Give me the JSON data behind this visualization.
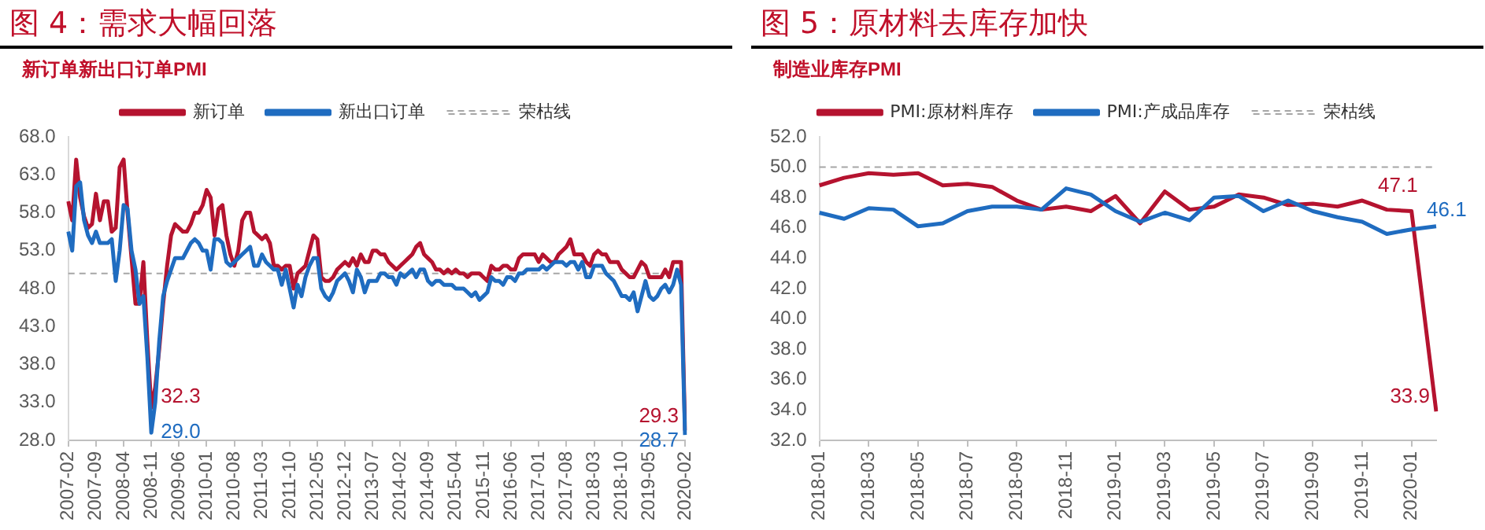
{
  "chart_data": [
    {
      "type": "line",
      "title": "图 4：需求大幅回落",
      "subtitle": "新订单新出口订单PMI",
      "categories": [
        "2007-02",
        null,
        null,
        null,
        null,
        null,
        null,
        "2007-09",
        null,
        null,
        null,
        null,
        null,
        null,
        "2008-04",
        null,
        null,
        null,
        null,
        null,
        null,
        "2008-11",
        null,
        null,
        null,
        null,
        null,
        null,
        "2009-06",
        null,
        null,
        null,
        null,
        null,
        null,
        "2010-01",
        null,
        null,
        null,
        null,
        null,
        null,
        "2010-08",
        null,
        null,
        null,
        null,
        null,
        null,
        "2011-03",
        null,
        null,
        null,
        null,
        null,
        null,
        "2011-10",
        null,
        null,
        null,
        null,
        null,
        null,
        "2012-05",
        null,
        null,
        null,
        null,
        null,
        null,
        "2012-12",
        null,
        null,
        null,
        null,
        null,
        null,
        "2013-07",
        null,
        null,
        null,
        null,
        null,
        null,
        "2014-02",
        null,
        null,
        null,
        null,
        null,
        null,
        "2014-09",
        null,
        null,
        null,
        null,
        null,
        null,
        "2015-04",
        null,
        null,
        null,
        null,
        null,
        null,
        "2015-11",
        null,
        null,
        null,
        null,
        null,
        null,
        "2016-06",
        null,
        null,
        null,
        null,
        null,
        null,
        "2017-01",
        null,
        null,
        null,
        null,
        null,
        null,
        "2017-08",
        null,
        null,
        null,
        null,
        null,
        null,
        "2018-03",
        null,
        null,
        null,
        null,
        null,
        null,
        "2018-10",
        null,
        null,
        null,
        null,
        null,
        null,
        "2019-05",
        null,
        null,
        null,
        null,
        null,
        null,
        null,
        null,
        "2020-02"
      ],
      "series": [
        {
          "name": "新订单",
          "color": "#b5132f",
          "values": [
            59.5,
            57,
            65,
            60,
            57.5,
            56,
            56.5,
            60.5,
            57,
            59.5,
            59.5,
            55.5,
            56,
            64,
            65,
            58,
            52,
            46,
            46,
            51.5,
            41,
            32.3,
            35,
            40,
            46,
            51,
            55,
            56.5,
            56,
            55.5,
            55.5,
            56.5,
            58,
            58,
            59,
            61,
            60,
            55,
            58.5,
            59,
            55,
            52.5,
            51,
            53,
            57,
            58,
            58,
            55.5,
            55,
            54.5,
            55,
            54,
            51,
            51,
            50.5,
            51,
            51,
            48,
            50,
            50.5,
            51,
            53,
            55,
            54.5,
            49.5,
            49,
            49,
            49.5,
            50.5,
            51,
            51.5,
            51,
            52,
            51,
            52.5,
            51.5,
            51.5,
            53,
            53,
            52.5,
            52.5,
            51.5,
            51,
            50.5,
            51,
            51.5,
            52,
            52.5,
            53.5,
            54,
            52.5,
            52,
            51.5,
            50.5,
            50.5,
            50,
            50.5,
            50,
            50.5,
            50,
            50,
            49.5,
            50,
            50,
            50,
            49.5,
            49,
            51,
            50.5,
            50.5,
            51,
            51,
            50.5,
            50.5,
            52,
            52.5,
            52.5,
            52.5,
            52.5,
            51.5,
            52.5,
            52,
            51.5,
            51.5,
            52.5,
            53,
            53.5,
            54.5,
            52.5,
            52.5,
            52.5,
            51.5,
            51,
            52.5,
            53,
            52.5,
            52.5,
            51.5,
            51.5,
            51.5,
            50.5,
            50,
            49.5,
            49.5,
            50.5,
            51.5,
            51,
            49.5,
            49.5,
            49.5,
            49.5,
            50.5,
            49.5,
            51.5,
            51.5,
            51.5,
            29.3
          ]
        },
        {
          "name": "新出口订单",
          "color": "#1f6cc0",
          "values": [
            55.5,
            53,
            61.5,
            62,
            57,
            55,
            54,
            55.5,
            54,
            54,
            54,
            54.5,
            49,
            53,
            59,
            58.5,
            53,
            50.5,
            46,
            47,
            39,
            29,
            33,
            41,
            47,
            49,
            50.5,
            52,
            52,
            52,
            53,
            54,
            54.5,
            54,
            53,
            53,
            50.5,
            54.5,
            54.5,
            54,
            51.5,
            51,
            51.5,
            52,
            52.5,
            53,
            53.5,
            51,
            51,
            52.5,
            51.5,
            51,
            50.5,
            50.5,
            48.5,
            50.5,
            48,
            45.5,
            48.5,
            47,
            49.5,
            51,
            52,
            52,
            48,
            47,
            46.5,
            47.5,
            49,
            49.5,
            50,
            49,
            47.5,
            50.5,
            49.5,
            47.5,
            49,
            49,
            49,
            50,
            50,
            49.5,
            49.5,
            48.5,
            50,
            49.5,
            50,
            50.5,
            49.5,
            50.5,
            50.5,
            49,
            48.5,
            49,
            49,
            48.5,
            48.5,
            48.5,
            48,
            48,
            48,
            47.5,
            47,
            47.5,
            46.5,
            47,
            47.5,
            49.5,
            49,
            49,
            48.5,
            49.5,
            49.5,
            49,
            50,
            50,
            50.5,
            50.5,
            50.5,
            50.5,
            51,
            50.5,
            51,
            51.5,
            51.5,
            51.5,
            51,
            51.5,
            51.5,
            50.5,
            51.5,
            49.5,
            49.5,
            51,
            51,
            51,
            50,
            49.5,
            49,
            48,
            47,
            47,
            46.5,
            47.5,
            45,
            47,
            49,
            47,
            46.5,
            47,
            48,
            48.5,
            47.5,
            48.5,
            50.5,
            48.5,
            28.7
          ]
        }
      ],
      "ylim": [
        28,
        68
      ],
      "yticks": [
        {
          "value": 28,
          "label": "28.0"
        },
        {
          "value": 33,
          "label": "33.0"
        },
        {
          "value": 38,
          "label": "38.0"
        },
        {
          "value": 43,
          "label": "43.0"
        },
        {
          "value": 48,
          "label": "48.0"
        },
        {
          "value": 53,
          "label": "53.0"
        },
        {
          "value": 58,
          "label": "58.0"
        },
        {
          "value": 63,
          "label": "63.0"
        },
        {
          "value": 68,
          "label": "68.0"
        }
      ],
      "ref_lines": [
        {
          "axis": "y",
          "value": 50,
          "label": "荣枯线",
          "color": "#a6a6a6",
          "line_style": "dashed"
        }
      ],
      "annotations": [
        {
          "text": "32.3",
          "x": "2008-11",
          "y": 32.3
        },
        {
          "text": "29.0",
          "x": "2008-11",
          "y": 29
        },
        {
          "text": "29.3",
          "x": "2020-02",
          "y": 29.3
        },
        {
          "text": "28.7",
          "x": "2020-02",
          "y": 28.7
        }
      ],
      "legend": "top"
    },
    {
      "type": "line",
      "title": "图 5：原材料去库存加快",
      "subtitle": "制造业库存PMI",
      "categories": [
        "2018-01",
        null,
        "2018-03",
        null,
        "2018-05",
        null,
        "2018-07",
        null,
        "2018-09",
        null,
        "2018-11",
        null,
        "2019-01",
        null,
        "2019-03",
        null,
        "2019-05",
        null,
        "2019-07",
        null,
        "2019-09",
        null,
        "2019-11",
        null,
        "2020-01",
        null
      ],
      "series": [
        {
          "name": "PMI:原材料库存",
          "color": "#b5132f",
          "values": [
            48.8,
            49.3,
            49.6,
            49.5,
            49.6,
            48.8,
            48.9,
            48.7,
            47.8,
            47.2,
            47.4,
            47.1,
            48.1,
            46.3,
            48.4,
            47.2,
            47.4,
            48.2,
            48,
            47.5,
            47.6,
            47.4,
            47.8,
            47.2,
            47.1,
            33.9
          ],
          "value_labels": [
            null,
            null,
            null,
            null,
            null,
            null,
            null,
            null,
            null,
            null,
            null,
            null,
            null,
            null,
            null,
            null,
            null,
            null,
            null,
            null,
            null,
            null,
            null,
            null,
            "47.1",
            "33.9"
          ]
        },
        {
          "name": "PMI:产成品库存",
          "color": "#1f6cc0",
          "values": [
            47,
            46.6,
            47.3,
            47.2,
            46.1,
            46.3,
            47.1,
            47.4,
            47.4,
            47.2,
            48.6,
            48.2,
            47.1,
            46.4,
            47,
            46.5,
            48,
            48.1,
            47.1,
            47.8,
            47.1,
            46.7,
            46.4,
            45.6,
            45.9,
            46.1
          ],
          "value_labels": [
            null,
            null,
            null,
            null,
            null,
            null,
            null,
            null,
            null,
            null,
            null,
            null,
            null,
            null,
            null,
            null,
            null,
            null,
            null,
            null,
            null,
            null,
            null,
            null,
            null,
            "46.1"
          ]
        }
      ],
      "ylim": [
        32,
        52
      ],
      "yticks": [
        {
          "value": 32,
          "label": "32.0"
        },
        {
          "value": 34,
          "label": "34.0"
        },
        {
          "value": 36,
          "label": "36.0"
        },
        {
          "value": 38,
          "label": "38.0"
        },
        {
          "value": 40,
          "label": "40.0"
        },
        {
          "value": 42,
          "label": "42.0"
        },
        {
          "value": 44,
          "label": "44.0"
        },
        {
          "value": 46,
          "label": "46.0"
        },
        {
          "value": 48,
          "label": "48.0"
        },
        {
          "value": 50,
          "label": "50.0"
        },
        {
          "value": 52,
          "label": "52.0"
        }
      ],
      "ref_lines": [
        {
          "axis": "y",
          "value": 50,
          "label": "荣枯线",
          "color": "#a6a6a6",
          "line_style": "dashed"
        }
      ],
      "legend": "top"
    }
  ]
}
